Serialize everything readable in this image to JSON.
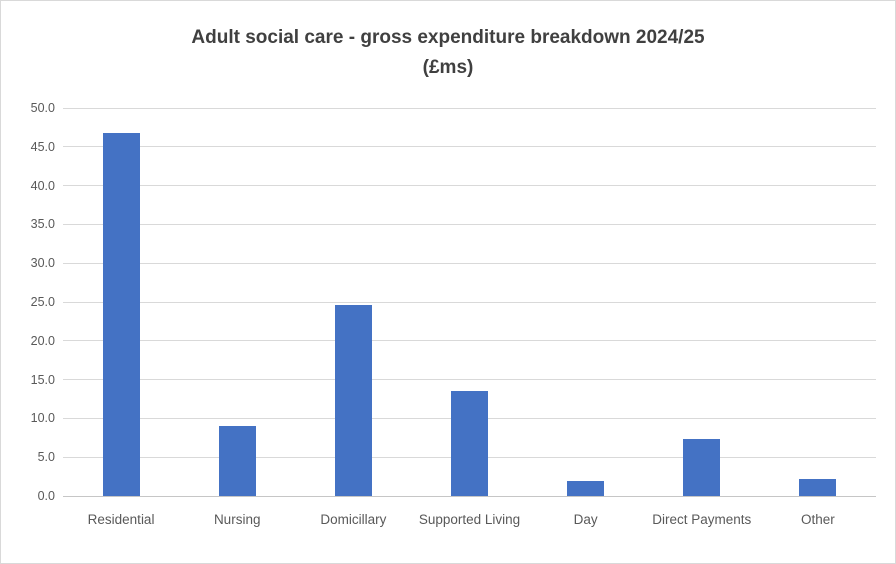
{
  "title": {
    "line1": "Adult social care - gross expenditure breakdown 2024/25",
    "line2": "(£ms)"
  },
  "chart_data": {
    "type": "bar",
    "title": "Adult social care - gross expenditure breakdown 2024/25 (£ms)",
    "categories": [
      "Residential",
      "Nursing",
      "Domicillary",
      "Supported Living",
      "Day",
      "Direct Payments",
      "Other"
    ],
    "values": [
      46.8,
      9.0,
      24.6,
      13.5,
      1.9,
      7.4,
      2.2
    ],
    "xlabel": "",
    "ylabel": "",
    "ylim": [
      0,
      50
    ],
    "ytick_step": 5,
    "ytick_labels": [
      "0.0",
      "5.0",
      "10.0",
      "15.0",
      "20.0",
      "25.0",
      "30.0",
      "35.0",
      "40.0",
      "45.0",
      "50.0"
    ],
    "grid": true,
    "legend": false,
    "bar_color": "#4472C4"
  },
  "colors": {
    "bar": "#4472C4",
    "title_text": "#404040",
    "axis_text": "#595959",
    "gridline": "#D9D9D9",
    "axis_line": "#C6C6C6",
    "border": "#D9D9D9",
    "background": "#FFFFFF"
  }
}
